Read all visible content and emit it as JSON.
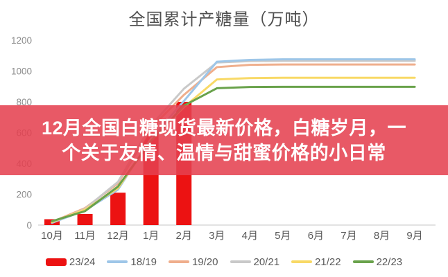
{
  "banner": {
    "line1": "12月全国白糖现货最新价格，白糖岁月，一",
    "line2": "个关于友情、温情与甜蜜价格的小日常",
    "background_color": "#e5404f",
    "text_color": "#ffffff"
  },
  "chart_data": {
    "type": "combo",
    "title": "全国累计产糖量（万吨）",
    "xlabel": "",
    "ylabel": "",
    "ylim": [
      0,
      1200
    ],
    "y_ticks": [
      0,
      200,
      400,
      600,
      800,
      1000,
      1200
    ],
    "grid": false,
    "legend_position": "bottom",
    "categories": [
      "10月",
      "11月",
      "12月",
      "1月",
      "2月",
      "3月",
      "4月",
      "5月",
      "6月",
      "7月",
      "8月",
      "9月"
    ],
    "bar_series": {
      "name": "23/24",
      "color": "#ec1212",
      "values": [
        38,
        72,
        210,
        610,
        800,
        null,
        null,
        null,
        null,
        null,
        null,
        null
      ]
    },
    "line_series": [
      {
        "name": "19/20",
        "color": "#efae8c",
        "values": [
          20,
          110,
          270,
          630,
          845,
          1025,
          1040,
          1042,
          1042,
          1042,
          1042,
          1042
        ]
      },
      {
        "name": "20/21",
        "color": "#c9c9c9",
        "values": [
          15,
          105,
          280,
          645,
          885,
          1055,
          1064,
          1066,
          1066,
          1066,
          1066,
          1066
        ]
      },
      {
        "name": "18/19",
        "color": "#9ec6e8",
        "values": [
          15,
          95,
          230,
          560,
          805,
          1060,
          1072,
          1076,
          1076,
          1076,
          1076,
          1076
        ]
      },
      {
        "name": "21/22",
        "color": "#f8d966",
        "values": [
          20,
          100,
          240,
          550,
          765,
          945,
          954,
          956,
          956,
          956,
          956,
          956
        ]
      },
      {
        "name": "22/23",
        "color": "#69a24b",
        "values": [
          25,
          90,
          250,
          545,
          775,
          888,
          896,
          897,
          897,
          897,
          897,
          897
        ]
      }
    ],
    "legend": [
      {
        "label": "23/24",
        "color": "#ec1212",
        "type": "bar"
      },
      {
        "label": "18/19",
        "color": "#9ec6e8",
        "type": "line"
      },
      {
        "label": "19/20",
        "color": "#efae8c",
        "type": "line"
      },
      {
        "label": "20/21",
        "color": "#c9c9c9",
        "type": "line"
      },
      {
        "label": "21/22",
        "color": "#f8d966",
        "type": "line"
      },
      {
        "label": "22/23",
        "color": "#69a24b",
        "type": "line"
      }
    ],
    "axis_text_color": "#8c8c8c",
    "category_text_color": "#595959",
    "axis_line_color": "#d9d9d9"
  }
}
